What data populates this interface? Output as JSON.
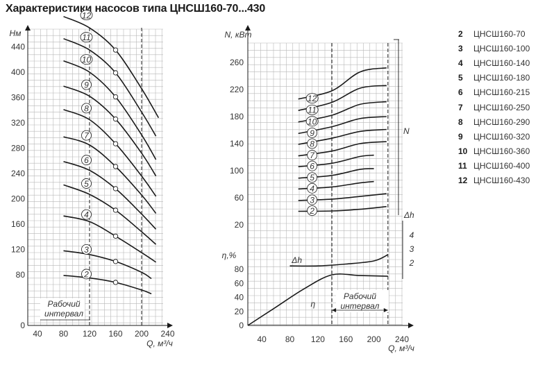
{
  "title": "Характеристики насосов типа ЦНСШ160-70...430",
  "legend": [
    {
      "num": "2",
      "name": "ЦНСШ160-70"
    },
    {
      "num": "3",
      "name": "ЦНСШ160-100"
    },
    {
      "num": "4",
      "name": "ЦНСШ160-140"
    },
    {
      "num": "5",
      "name": "ЦНСШ160-180"
    },
    {
      "num": "6",
      "name": "ЦНСШ160-215"
    },
    {
      "num": "7",
      "name": "ЦНСШ160-250"
    },
    {
      "num": "8",
      "name": "ЦНСШ160-290"
    },
    {
      "num": "9",
      "name": "ЦНСШ160-320"
    },
    {
      "num": "10",
      "name": "ЦНСШ160-360"
    },
    {
      "num": "11",
      "name": "ЦНСШ160-400"
    },
    {
      "num": "12",
      "name": "ЦНСШ160-430"
    }
  ],
  "chart_data": [
    {
      "type": "line",
      "title": "",
      "xlabel": "Q, м³/ч",
      "ylabel": "Hм",
      "xlim": [
        20,
        240
      ],
      "ylim": [
        0,
        480
      ],
      "x_ticks": [
        40,
        80,
        120,
        160,
        200,
        240
      ],
      "y_ticks": [
        0,
        80,
        120,
        160,
        200,
        240,
        280,
        320,
        360,
        400,
        440
      ],
      "grid": true,
      "vlines": [
        120,
        200
      ],
      "annotation": "Рабочий интервал",
      "series": [
        {
          "name": "2",
          "x": [
            80,
            120,
            160,
            200,
            215
          ],
          "y": [
            79,
            75,
            68,
            56,
            50
          ],
          "marker_x": 160
        },
        {
          "name": "3",
          "x": [
            80,
            120,
            160,
            200,
            215
          ],
          "y": [
            118,
            112,
            101,
            84,
            74
          ],
          "marker_x": 160
        },
        {
          "name": "4",
          "x": [
            80,
            120,
            160,
            200,
            222
          ],
          "y": [
            173,
            164,
            141,
            115,
            100
          ],
          "marker_x": 160
        },
        {
          "name": "5",
          "x": [
            80,
            120,
            160,
            200,
            222
          ],
          "y": [
            222,
            207,
            182,
            148,
            128
          ],
          "marker_x": 160
        },
        {
          "name": "6",
          "x": [
            80,
            120,
            160,
            200,
            222
          ],
          "y": [
            259,
            245,
            216,
            176,
            152
          ],
          "marker_x": 160
        },
        {
          "name": "7",
          "x": [
            80,
            120,
            160,
            200,
            222
          ],
          "y": [
            298,
            285,
            251,
            206,
            177
          ],
          "marker_x": 160
        },
        {
          "name": "8",
          "x": [
            80,
            120,
            160,
            200,
            222
          ],
          "y": [
            341,
            325,
            287,
            236,
            204
          ],
          "marker_x": 160
        },
        {
          "name": "9",
          "x": [
            80,
            120,
            160,
            200,
            222
          ],
          "y": [
            378,
            362,
            326,
            272,
            236
          ],
          "marker_x": 160
        },
        {
          "name": "10",
          "x": [
            80,
            120,
            160,
            200,
            222
          ],
          "y": [
            418,
            400,
            361,
            301,
            262
          ],
          "marker_x": 160
        },
        {
          "name": "11",
          "x": [
            80,
            120,
            160,
            200,
            222
          ],
          "y": [
            453,
            435,
            399,
            337,
            299
          ],
          "marker_x": 160
        },
        {
          "name": "12",
          "x": [
            80,
            120,
            160,
            200,
            226
          ],
          "y": [
            488,
            470,
            435,
            374,
            328
          ],
          "marker_x": 160
        }
      ]
    },
    {
      "type": "line",
      "title": "",
      "xlabel": "Q, м³/ч",
      "ylabel": "N, кВт",
      "ylabel_lower": "η,%",
      "xlim": [
        20,
        240
      ],
      "x_ticks": [
        40,
        80,
        120,
        160,
        200,
        240
      ],
      "power_y_ticks": [
        20,
        60,
        100,
        140,
        180,
        220,
        260
      ],
      "eff_y_ticks": [
        0,
        20,
        40,
        60,
        80
      ],
      "grid": true,
      "vlines": [
        140,
        220
      ],
      "annotation": "Рабочий интервал",
      "bracket_labels": {
        "N": "N",
        "dh": "Δh",
        "dh_values": [
          "4",
          "3",
          "2"
        ]
      },
      "power_series": [
        {
          "name": "2",
          "x": [
            92,
            140,
            180,
            218
          ],
          "y": [
            40,
            40.5,
            43,
            47
          ]
        },
        {
          "name": "3",
          "x": [
            92,
            140,
            180,
            218
          ],
          "y": [
            56,
            58,
            62,
            66
          ]
        },
        {
          "name": "4",
          "x": [
            92,
            140,
            180,
            200
          ],
          "y": [
            73,
            76,
            82,
            84
          ]
        },
        {
          "name": "5",
          "x": [
            92,
            140,
            180,
            200
          ],
          "y": [
            89,
            93,
            102,
            103
          ]
        },
        {
          "name": "6",
          "x": [
            92,
            140,
            180,
            200
          ],
          "y": [
            106,
            111,
            121,
            123
          ]
        },
        {
          "name": "7",
          "x": [
            92,
            140,
            180,
            218
          ],
          "y": [
            122,
            129,
            140,
            143
          ]
        },
        {
          "name": "8",
          "x": [
            92,
            140,
            180,
            218
          ],
          "y": [
            139,
            148,
            158,
            161
          ]
        },
        {
          "name": "9",
          "x": [
            92,
            140,
            180,
            218
          ],
          "y": [
            155,
            165,
            177,
            180
          ]
        },
        {
          "name": "10",
          "x": [
            92,
            140,
            180,
            218
          ],
          "y": [
            172,
            182,
            198,
            202
          ]
        },
        {
          "name": "11",
          "x": [
            92,
            140,
            180,
            218
          ],
          "y": [
            189,
            201,
            222,
            226
          ]
        },
        {
          "name": "12",
          "x": [
            92,
            140,
            180,
            218
          ],
          "y": [
            206,
            218,
            246,
            252
          ]
        }
      ],
      "npsh_curve": {
        "name": "Δh",
        "x": [
          80,
          120,
          160,
          200,
          220
        ],
        "y": [
          2.2,
          2.2,
          2.5,
          3.0,
          4.0
        ]
      },
      "efficiency_curve": {
        "name": "η",
        "x": [
          20,
          60,
          100,
          140,
          180,
          220
        ],
        "y": [
          0,
          26,
          52,
          72,
          71,
          70
        ]
      }
    }
  ]
}
